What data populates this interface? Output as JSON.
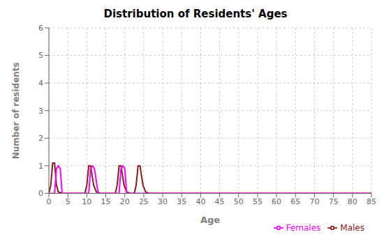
{
  "chart_data": {
    "type": "line",
    "title": "Distribution of Residents' Ages",
    "xlabel": "Age",
    "ylabel": "Number of residents",
    "xlim": [
      0,
      85
    ],
    "ylim": [
      0,
      6
    ],
    "xticks": [
      0,
      5,
      10,
      15,
      20,
      25,
      30,
      35,
      40,
      45,
      50,
      55,
      60,
      65,
      70,
      75,
      80,
      85
    ],
    "yticks": [
      0,
      1,
      2,
      3,
      4,
      5,
      6
    ],
    "grid": true,
    "legend": "lower right",
    "series": [
      {
        "name": "Males",
        "color": "#8B1A1A",
        "x": [
          0,
          0.5,
          1.0,
          1.5,
          2.0,
          2.5,
          3.5,
          5,
          9.5,
          10,
          10.5,
          11.0,
          11.8,
          12.5,
          13.5,
          14,
          17.5,
          18,
          18.5,
          19.0,
          19.8,
          20.5,
          21.5,
          22.5,
          23.0,
          23.5,
          24.0,
          24.8,
          25.5,
          26.5,
          28,
          85
        ],
        "values": [
          0,
          0.3,
          1.1,
          1.1,
          0.3,
          0.05,
          0,
          0,
          0,
          0.3,
          1.0,
          1.0,
          0.3,
          0.05,
          0,
          0,
          0,
          0.3,
          1.0,
          1.0,
          0.3,
          0.05,
          0,
          0,
          0.3,
          1.0,
          1.0,
          0.3,
          0.05,
          0,
          0,
          0
        ]
      },
      {
        "name": "Females",
        "color": "#FF00FF",
        "x": [
          0,
          1.5,
          2.0,
          2.5,
          3.0,
          3.5,
          4.5,
          5,
          9.5,
          10.5,
          11.0,
          11.5,
          12.0,
          13.0,
          14,
          17.5,
          18.5,
          19.0,
          19.5,
          20.0,
          20.5,
          21.5,
          27,
          85
        ],
        "values": [
          0,
          0,
          0.9,
          1.0,
          0.9,
          0,
          0,
          0,
          0,
          0,
          0.9,
          1.0,
          0.9,
          0,
          0,
          0,
          0,
          0.9,
          1.0,
          0.9,
          0,
          0,
          0,
          0
        ]
      }
    ]
  }
}
